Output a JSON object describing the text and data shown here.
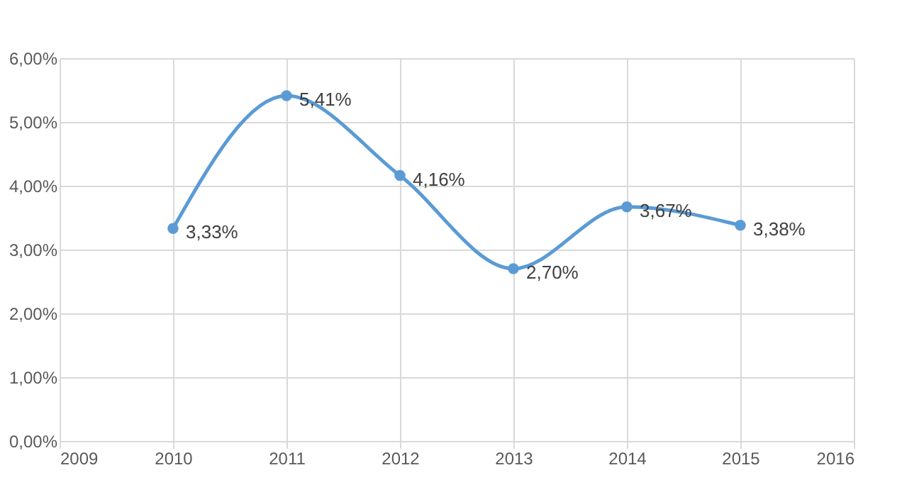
{
  "chart_data": {
    "type": "line",
    "x": [
      2010,
      2011,
      2012,
      2013,
      2014,
      2015
    ],
    "series": [
      {
        "color": "#5b9bd5",
        "values": [
          3.33,
          5.41,
          4.16,
          2.7,
          3.67,
          3.38
        ],
        "value_labels": [
          "3,33%",
          "5,41%",
          "4,16%",
          "2,70%",
          "3,67%",
          "3,38%"
        ]
      }
    ],
    "xlim": [
      2009,
      2016
    ],
    "xticks": [
      2009,
      2010,
      2011,
      2012,
      2013,
      2014,
      2015,
      2016
    ],
    "ylim": [
      0,
      6
    ],
    "yticks": [
      {
        "value": 0,
        "label": "0,00%"
      },
      {
        "value": 1,
        "label": "1,00%"
      },
      {
        "value": 2,
        "label": "2,00%"
      },
      {
        "value": 3,
        "label": "3,00%"
      },
      {
        "value": 4,
        "label": "4,00%"
      },
      {
        "value": 5,
        "label": "5,00%"
      },
      {
        "value": 6,
        "label": "6,00%"
      }
    ],
    "grid": true,
    "marker": "circle",
    "line_style": "solid"
  }
}
